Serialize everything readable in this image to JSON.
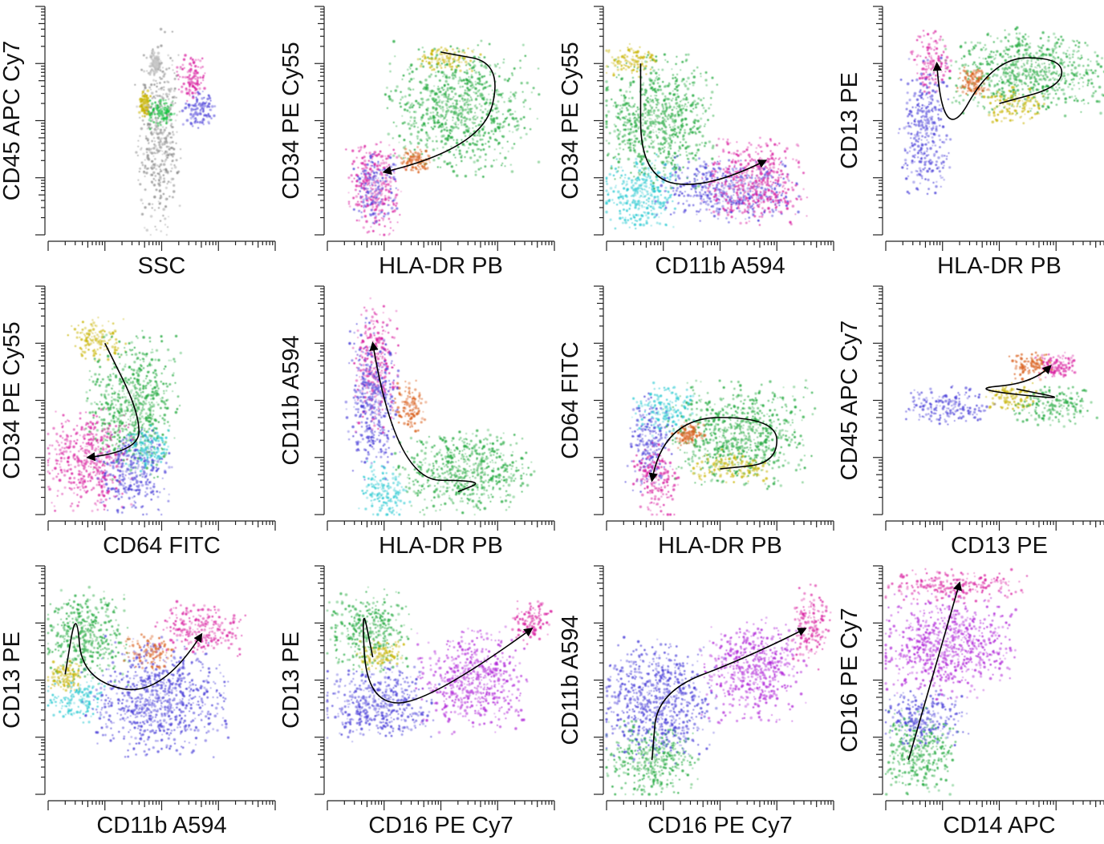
{
  "chart_data": [
    {
      "type": "scatter",
      "xlabel": "SSC",
      "ylabel": "CD45 APC Cy7",
      "x_scale": "log",
      "y_scale": "log",
      "xlim": [
        0,
        4
      ],
      "ylim": [
        0,
        4
      ],
      "populations": [
        {
          "color": "#8a8a8a",
          "x": [
            1.6,
            2.3
          ],
          "y": [
            0.2,
            3.3
          ]
        },
        {
          "color": "#bbbbbb",
          "x": [
            1.8,
            2.0
          ],
          "y": [
            2.8,
            3.2
          ]
        },
        {
          "color": "#c8b400",
          "x": [
            1.6,
            1.8
          ],
          "y": [
            2.1,
            2.5
          ]
        },
        {
          "color": "#0fbf3c",
          "x": [
            1.8,
            2.2
          ],
          "y": [
            1.9,
            2.4
          ]
        },
        {
          "color": "#d81b9e",
          "x": [
            2.3,
            2.8
          ],
          "y": [
            2.4,
            3.1
          ]
        },
        {
          "color": "#4a3fd8",
          "x": [
            2.4,
            2.9
          ],
          "y": [
            1.9,
            2.5
          ]
        }
      ],
      "arrow": []
    },
    {
      "type": "scatter",
      "xlabel": "HLA-DR PB",
      "ylabel": "CD34 PE Cy55",
      "x_scale": "log",
      "y_scale": "log",
      "xlim": [
        0,
        4
      ],
      "ylim": [
        0,
        4
      ],
      "populations": [
        {
          "color": "#1fa83c",
          "x": [
            1.2,
            3.5
          ],
          "y": [
            1.2,
            3.2
          ]
        },
        {
          "color": "#c8b400",
          "x": [
            1.6,
            2.6
          ],
          "y": [
            2.9,
            3.3
          ]
        },
        {
          "color": "#d81b9e",
          "x": [
            0.4,
            1.3
          ],
          "y": [
            0.1,
            1.6
          ]
        },
        {
          "color": "#4a3fd8",
          "x": [
            0.5,
            1.2
          ],
          "y": [
            0.3,
            1.4
          ]
        },
        {
          "color": "#d85a14",
          "x": [
            1.3,
            1.8
          ],
          "y": [
            1.1,
            1.5
          ]
        }
      ],
      "arrow": [
        [
          2.0,
          3.2
        ],
        [
          3.1,
          3.0
        ],
        [
          2.7,
          1.5
        ],
        [
          1.0,
          1.1
        ]
      ]
    },
    {
      "type": "scatter",
      "xlabel": "CD11b A594",
      "ylabel": "CD34 PE Cy55",
      "x_scale": "log",
      "y_scale": "log",
      "xlim": [
        0,
        4
      ],
      "ylim": [
        0,
        4
      ],
      "populations": [
        {
          "color": "#c8b400",
          "x": [
            0.0,
            0.9
          ],
          "y": [
            2.8,
            3.3
          ]
        },
        {
          "color": "#1fa83c",
          "x": [
            0.0,
            1.8
          ],
          "y": [
            1.0,
            3.0
          ]
        },
        {
          "color": "#25c8d0",
          "x": [
            0.0,
            1.2
          ],
          "y": [
            0.1,
            1.3
          ]
        },
        {
          "color": "#4a3fd8",
          "x": [
            1.0,
            3.3
          ],
          "y": [
            0.3,
            1.3
          ]
        },
        {
          "color": "#d81b9e",
          "x": [
            1.8,
            3.4
          ],
          "y": [
            0.3,
            1.6
          ]
        }
      ],
      "arrow": [
        [
          0.6,
          3.0
        ],
        [
          0.6,
          1.0
        ],
        [
          1.8,
          0.8
        ],
        [
          2.8,
          1.3
        ]
      ]
    },
    {
      "type": "scatter",
      "xlabel": "HLA-DR PB",
      "ylabel": "CD13 PE",
      "x_scale": "log",
      "y_scale": "log",
      "xlim": [
        0,
        4
      ],
      "ylim": [
        0,
        4
      ],
      "populations": [
        {
          "color": "#1fa83c",
          "x": [
            1.2,
            3.8
          ],
          "y": [
            2.2,
            3.5
          ]
        },
        {
          "color": "#c8b400",
          "x": [
            1.8,
            2.8
          ],
          "y": [
            2.0,
            2.6
          ]
        },
        {
          "color": "#d85a14",
          "x": [
            1.3,
            1.8
          ],
          "y": [
            2.4,
            2.9
          ]
        },
        {
          "color": "#d81b9e",
          "x": [
            0.5,
            1.1
          ],
          "y": [
            2.5,
            3.5
          ]
        },
        {
          "color": "#4a3fd8",
          "x": [
            0.3,
            1.1
          ],
          "y": [
            0.9,
            2.9
          ]
        }
      ],
      "arrow": [
        [
          2.0,
          2.3
        ],
        [
          3.1,
          2.6
        ],
        [
          3.1,
          3.1
        ],
        [
          1.9,
          3.1
        ],
        [
          1.0,
          1.5
        ],
        [
          0.9,
          3.0
        ]
      ]
    },
    {
      "type": "scatter",
      "xlabel": "CD64 FITC",
      "ylabel": "CD34 PE Cy55",
      "x_scale": "log",
      "y_scale": "log",
      "xlim": [
        0,
        4
      ],
      "ylim": [
        0,
        4
      ],
      "populations": [
        {
          "color": "#c8b400",
          "x": [
            0.4,
            1.3
          ],
          "y": [
            2.7,
            3.4
          ]
        },
        {
          "color": "#1fa83c",
          "x": [
            0.8,
            2.2
          ],
          "y": [
            0.8,
            3.0
          ]
        },
        {
          "color": "#d81b9e",
          "x": [
            0.0,
            1.4
          ],
          "y": [
            0.2,
            1.7
          ]
        },
        {
          "color": "#4a3fd8",
          "x": [
            0.9,
            2.1
          ],
          "y": [
            0.1,
            1.4
          ]
        },
        {
          "color": "#25c8d0",
          "x": [
            1.4,
            2.1
          ],
          "y": [
            0.8,
            1.5
          ]
        }
      ],
      "arrow": [
        [
          1.0,
          3.0
        ],
        [
          1.6,
          1.8
        ],
        [
          1.6,
          1.1
        ],
        [
          0.7,
          1.0
        ]
      ]
    },
    {
      "type": "scatter",
      "xlabel": "HLA-DR PB",
      "ylabel": "CD11b A594",
      "x_scale": "log",
      "y_scale": "log",
      "xlim": [
        0,
        4
      ],
      "ylim": [
        0,
        4
      ],
      "populations": [
        {
          "color": "#d81b9e",
          "x": [
            0.5,
            1.2
          ],
          "y": [
            1.6,
            3.6
          ]
        },
        {
          "color": "#4a3fd8",
          "x": [
            0.4,
            1.2
          ],
          "y": [
            0.8,
            3.2
          ]
        },
        {
          "color": "#d85a14",
          "x": [
            1.2,
            1.7
          ],
          "y": [
            1.5,
            2.3
          ]
        },
        {
          "color": "#25c8d0",
          "x": [
            0.6,
            1.4
          ],
          "y": [
            0.0,
            0.9
          ]
        },
        {
          "color": "#1fa83c",
          "x": [
            1.4,
            3.5
          ],
          "y": [
            0.1,
            1.4
          ]
        }
      ],
      "arrow": [
        [
          2.3,
          0.4
        ],
        [
          2.8,
          0.6
        ],
        [
          1.2,
          0.6
        ],
        [
          0.8,
          3.0
        ]
      ]
    },
    {
      "type": "scatter",
      "xlabel": "HLA-DR PB",
      "ylabel": "CD64 FITC",
      "x_scale": "log",
      "y_scale": "log",
      "xlim": [
        0,
        4
      ],
      "ylim": [
        0,
        4
      ],
      "populations": [
        {
          "color": "#1fa83c",
          "x": [
            1.2,
            3.5
          ],
          "y": [
            0.6,
            2.2
          ]
        },
        {
          "color": "#c8b400",
          "x": [
            1.5,
            2.8
          ],
          "y": [
            0.6,
            1.1
          ]
        },
        {
          "color": "#25c8d0",
          "x": [
            0.5,
            1.5
          ],
          "y": [
            1.4,
            2.2
          ]
        },
        {
          "color": "#4a3fd8",
          "x": [
            0.4,
            1.1
          ],
          "y": [
            0.5,
            2.0
          ]
        },
        {
          "color": "#d81b9e",
          "x": [
            0.5,
            1.2
          ],
          "y": [
            0.0,
            1.2
          ]
        },
        {
          "color": "#d85a14",
          "x": [
            1.2,
            1.7
          ],
          "y": [
            1.2,
            1.6
          ]
        }
      ],
      "arrow": [
        [
          2.0,
          0.8
        ],
        [
          3.0,
          0.9
        ],
        [
          3.0,
          1.7
        ],
        [
          1.0,
          1.7
        ],
        [
          0.8,
          0.6
        ]
      ]
    },
    {
      "type": "scatter",
      "xlabel": "CD13 PE",
      "ylabel": "CD45 APC Cy7",
      "x_scale": "log",
      "y_scale": "log",
      "xlim": [
        0,
        4
      ],
      "ylim": [
        0,
        4
      ],
      "populations": [
        {
          "color": "#4a3fd8",
          "x": [
            0.4,
            1.8
          ],
          "y": [
            1.6,
            2.2
          ]
        },
        {
          "color": "#c8b400",
          "x": [
            1.8,
            2.6
          ],
          "y": [
            1.8,
            2.3
          ]
        },
        {
          "color": "#1fa83c",
          "x": [
            2.3,
            3.6
          ],
          "y": [
            1.6,
            2.2
          ]
        },
        {
          "color": "#d85a14",
          "x": [
            2.2,
            2.9
          ],
          "y": [
            2.4,
            2.8
          ]
        },
        {
          "color": "#d81b9e",
          "x": [
            2.7,
            3.3
          ],
          "y": [
            2.4,
            2.8
          ]
        }
      ],
      "arrow": [
        [
          2.3,
          2.2
        ],
        [
          3.3,
          2.0
        ],
        [
          1.4,
          2.2
        ],
        [
          2.6,
          2.3
        ],
        [
          2.9,
          2.6
        ]
      ]
    },
    {
      "type": "scatter",
      "xlabel": "CD11b A594",
      "ylabel": "CD13 PE",
      "x_scale": "log",
      "y_scale": "log",
      "xlim": [
        0,
        4
      ],
      "ylim": [
        0,
        4
      ],
      "populations": [
        {
          "color": "#1fa83c",
          "x": [
            0.0,
            1.3
          ],
          "y": [
            2.0,
            3.5
          ]
        },
        {
          "color": "#c8b400",
          "x": [
            0.0,
            0.6
          ],
          "y": [
            1.8,
            2.3
          ]
        },
        {
          "color": "#25c8d0",
          "x": [
            0.0,
            1.0
          ],
          "y": [
            1.3,
            2.0
          ]
        },
        {
          "color": "#4a3fd8",
          "x": [
            0.8,
            3.0
          ],
          "y": [
            0.8,
            2.6
          ]
        },
        {
          "color": "#d85a14",
          "x": [
            1.4,
            2.2
          ],
          "y": [
            2.2,
            2.8
          ]
        },
        {
          "color": "#d81b9e",
          "x": [
            2.0,
            3.4
          ],
          "y": [
            2.5,
            3.3
          ]
        }
      ],
      "arrow": [
        [
          0.3,
          2.1
        ],
        [
          0.5,
          3.3
        ],
        [
          0.6,
          2.0
        ],
        [
          2.0,
          1.7
        ],
        [
          2.7,
          2.8
        ]
      ]
    },
    {
      "type": "scatter",
      "xlabel": "CD16 PE Cy7",
      "ylabel": "CD13 PE",
      "x_scale": "log",
      "y_scale": "log",
      "xlim": [
        0,
        4
      ],
      "ylim": [
        0,
        4
      ],
      "populations": [
        {
          "color": "#1fa83c",
          "x": [
            0.1,
            1.4
          ],
          "y": [
            2.2,
            3.5
          ]
        },
        {
          "color": "#c8b400",
          "x": [
            0.5,
            1.3
          ],
          "y": [
            2.2,
            2.7
          ]
        },
        {
          "color": "#4a3fd8",
          "x": [
            0.0,
            1.8
          ],
          "y": [
            1.0,
            2.2
          ]
        },
        {
          "color": "#b026d8",
          "x": [
            1.7,
            3.4
          ],
          "y": [
            1.2,
            2.8
          ]
        },
        {
          "color": "#d81b9e",
          "x": [
            3.3,
            3.9
          ],
          "y": [
            2.7,
            3.4
          ]
        }
      ],
      "arrow": [
        [
          0.8,
          2.4
        ],
        [
          0.6,
          3.4
        ],
        [
          0.7,
          1.6
        ],
        [
          1.8,
          1.6
        ],
        [
          3.6,
          2.9
        ]
      ]
    },
    {
      "type": "scatter",
      "xlabel": "CD16 PE Cy7",
      "ylabel": "CD11b A594",
      "x_scale": "log",
      "y_scale": "log",
      "xlim": [
        0,
        4
      ],
      "ylim": [
        0,
        4
      ],
      "populations": [
        {
          "color": "#1fa83c",
          "x": [
            0.0,
            1.5
          ],
          "y": [
            0.0,
            1.2
          ]
        },
        {
          "color": "#4a3fd8",
          "x": [
            0.0,
            1.8
          ],
          "y": [
            0.7,
            2.6
          ]
        },
        {
          "color": "#b026d8",
          "x": [
            1.8,
            3.4
          ],
          "y": [
            1.4,
            3.0
          ]
        },
        {
          "color": "#d81b9e",
          "x": [
            3.3,
            3.9
          ],
          "y": [
            2.3,
            3.6
          ]
        }
      ],
      "arrow": [
        [
          0.8,
          0.6
        ],
        [
          0.9,
          1.8
        ],
        [
          2.5,
          2.4
        ],
        [
          3.5,
          2.9
        ]
      ]
    },
    {
      "type": "scatter",
      "xlabel": "CD14 APC",
      "ylabel": "CD16 PE Cy7",
      "x_scale": "log",
      "y_scale": "log",
      "xlim": [
        0,
        4
      ],
      "ylim": [
        0,
        4
      ],
      "populations": [
        {
          "color": "#1fa83c",
          "x": [
            0.0,
            1.2
          ],
          "y": [
            0.1,
            1.4
          ]
        },
        {
          "color": "#4a3fd8",
          "x": [
            0.0,
            1.3
          ],
          "y": [
            0.9,
            1.8
          ]
        },
        {
          "color": "#b026d8",
          "x": [
            0.0,
            2.1
          ],
          "y": [
            1.8,
            3.4
          ]
        },
        {
          "color": "#d81b9e",
          "x": [
            0.1,
            2.3
          ],
          "y": [
            3.4,
            3.9
          ]
        }
      ],
      "arrow": [
        [
          0.4,
          0.6
        ],
        [
          1.3,
          3.7
        ]
      ]
    }
  ]
}
